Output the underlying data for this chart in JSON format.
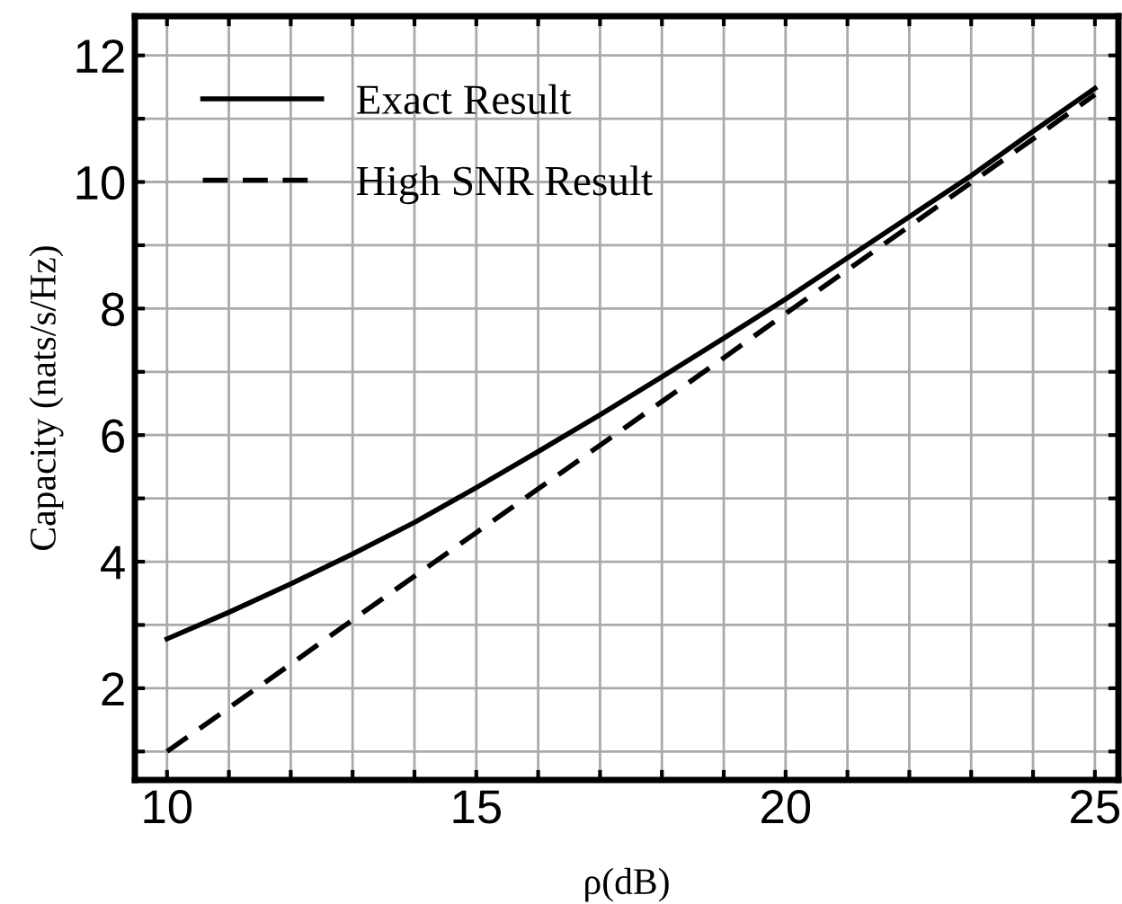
{
  "chart_data": {
    "type": "line",
    "xlabel": "ρ(dB)",
    "ylabel": "Capacity (nats/s/Hz)",
    "x": [
      10,
      11,
      12,
      13,
      14,
      15,
      16,
      17,
      18,
      19,
      20,
      21,
      22,
      23,
      24,
      25
    ],
    "series": [
      {
        "name": "Exact Result",
        "color": "#000000",
        "line_style": "solid",
        "values": [
          2.78,
          3.2,
          3.65,
          4.12,
          4.62,
          5.17,
          5.74,
          6.32,
          6.92,
          7.53,
          8.15,
          8.8,
          9.45,
          10.1,
          10.8,
          11.48
        ]
      },
      {
        "name": "High SNR Result",
        "color": "#000000",
        "line_style": "dashed",
        "values": [
          1.0,
          1.69,
          2.38,
          3.08,
          3.77,
          4.46,
          5.15,
          5.84,
          6.53,
          7.22,
          7.92,
          8.61,
          9.3,
          9.99,
          10.68,
          11.38
        ]
      }
    ],
    "xlim": [
      9.48,
      25.38
    ],
    "ylim": [
      0.55,
      12.62
    ],
    "xticks": [
      10,
      {
        "value": 11,
        "label": null
      },
      {
        "value": 12,
        "label": null
      },
      {
        "value": 13,
        "label": null
      },
      {
        "value": 14,
        "label": null
      },
      15,
      {
        "value": 16,
        "label": null
      },
      {
        "value": 17,
        "label": null
      },
      {
        "value": 18,
        "label": null
      },
      {
        "value": 19,
        "label": null
      },
      20,
      {
        "value": 21,
        "label": null
      },
      {
        "value": 22,
        "label": null
      },
      {
        "value": 23,
        "label": null
      },
      {
        "value": 24,
        "label": null
      },
      25
    ],
    "yticks": [
      {
        "value": 1,
        "label": null
      },
      2,
      {
        "value": 3,
        "label": null
      },
      4,
      {
        "value": 5,
        "label": null
      },
      6,
      {
        "value": 7,
        "label": null
      },
      8,
      {
        "value": 9,
        "label": null
      },
      10,
      {
        "value": 11,
        "label": null
      },
      12
    ],
    "grid": true,
    "legend": "top left"
  }
}
